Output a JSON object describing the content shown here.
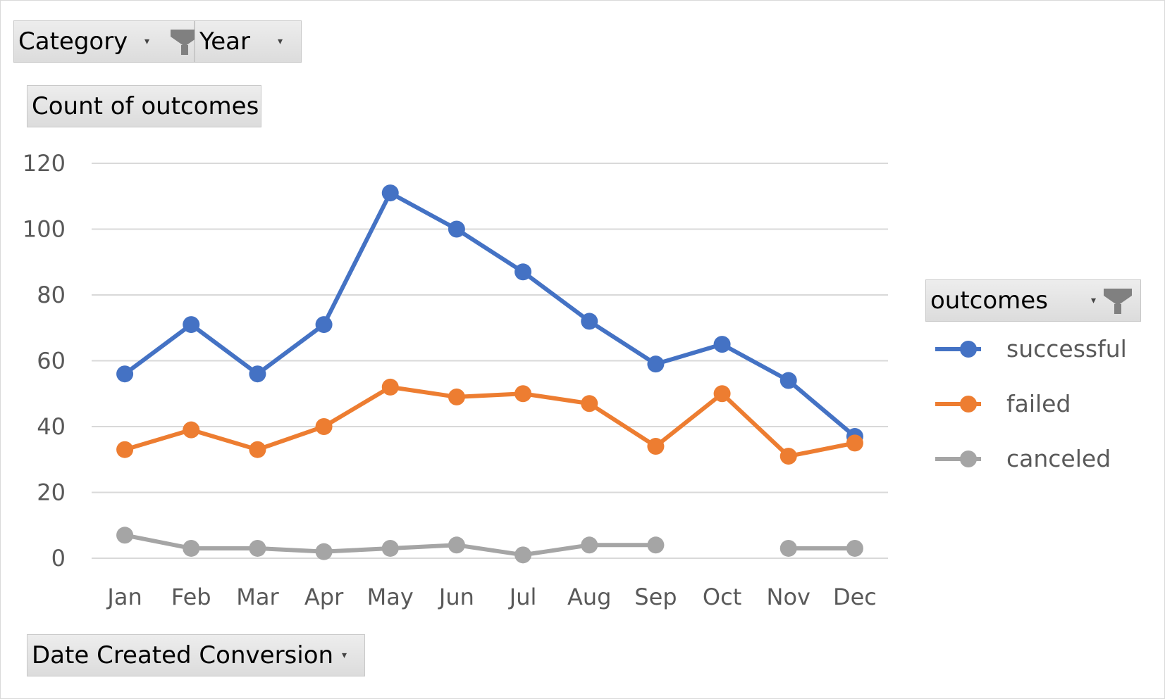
{
  "filters": {
    "category": {
      "label": "Category",
      "filter_icon": "funnel-icon",
      "dropdown_icon": "chevron-down-icon"
    },
    "year": {
      "label": "Year",
      "dropdown_icon": "chevron-down-icon"
    },
    "values_field": {
      "label": "Count of outcomes"
    },
    "axis_field": {
      "label": "Date Created Conversion",
      "dropdown_icon": "chevron-down-icon"
    },
    "legend_field": {
      "label": "outcomes",
      "filter_icon": "funnel-icon",
      "dropdown_icon": "chevron-down-icon"
    }
  },
  "chart_data": {
    "type": "line",
    "categories": [
      "Jan",
      "Feb",
      "Mar",
      "Apr",
      "May",
      "Jun",
      "Jul",
      "Aug",
      "Sep",
      "Oct",
      "Nov",
      "Dec"
    ],
    "ylim": [
      0,
      120
    ],
    "yticks": [
      0,
      20,
      40,
      60,
      80,
      100,
      120
    ],
    "grid": true,
    "legend_position": "right",
    "series": [
      {
        "name": "successful",
        "color": "#4472c4",
        "values": [
          56,
          71,
          56,
          71,
          111,
          100,
          87,
          72,
          59,
          65,
          54,
          37
        ]
      },
      {
        "name": "failed",
        "color": "#ed7d31",
        "values": [
          33,
          39,
          33,
          40,
          52,
          49,
          50,
          47,
          34,
          50,
          31,
          35
        ]
      },
      {
        "name": "canceled",
        "color": "#a5a5a5",
        "values": [
          7,
          3,
          3,
          2,
          3,
          4,
          1,
          4,
          4,
          null,
          3,
          3
        ]
      }
    ]
  }
}
